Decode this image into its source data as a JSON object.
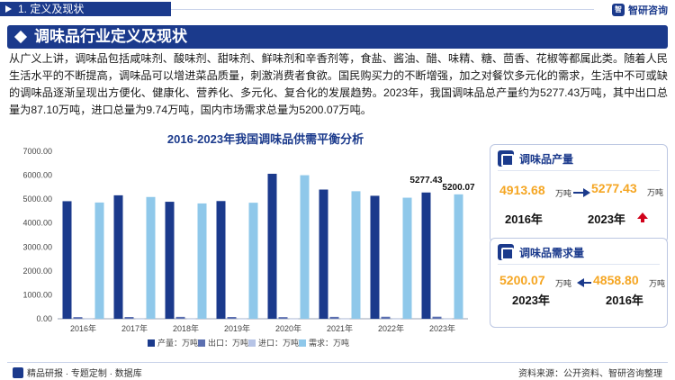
{
  "section": {
    "label": "1. 定义及现状"
  },
  "brand": {
    "logo_text": "智",
    "name": "智研咨询"
  },
  "heading": {
    "title": "调味品行业定义及现状"
  },
  "paragraph": "从广义上讲，调味品包括咸味剂、酸味剂、甜味剂、鲜味剂和辛香剂等，食盐、酱油、醋、味精、糖、茴香、花椒等都属此类。随着人民生活水平的不断提高，调味品可以增进菜品质量，刺激消费者食欲。国民购买力的不断增强，加之对餐饮多元化的需求，生活中不可或缺的调味品逐渐呈现出方便化、健康化、营养化、多元化、复合化的发展趋势。2023年，我国调味品总产量约为5277.43万吨，其中出口总量为87.10万吨，进口总量为9.74万吨，国内市场需求总量为5200.07万吨。",
  "chart_data": {
    "type": "bar",
    "title": "2016-2023年我国调味品供需平衡分析",
    "categories": [
      "2016年",
      "2017年",
      "2018年",
      "2019年",
      "2020年",
      "2021年",
      "2022年",
      "2023年"
    ],
    "series": [
      {
        "name": "产量：万吨",
        "color": "#1b3a8c",
        "values": [
          4913.68,
          5160,
          4890,
          4920,
          6060,
          5400,
          5140,
          5277.43
        ]
      },
      {
        "name": "出口：万吨",
        "color": "#5b6fb0",
        "values": [
          70,
          75,
          80,
          75,
          70,
          80,
          85,
          87.1
        ]
      },
      {
        "name": "进口：万吨",
        "color": "#b6c4e6",
        "values": [
          8,
          8,
          9,
          8,
          9,
          9,
          9,
          9.74
        ]
      },
      {
        "name": "需求：万吨",
        "color": "#8fc8ea",
        "values": [
          4858.8,
          5090,
          4820,
          4850,
          6000,
          5330,
          5060,
          5200.07
        ]
      }
    ],
    "data_labels": [
      {
        "series": 0,
        "index": 7,
        "text": "5277.43"
      },
      {
        "series": 3,
        "index": 7,
        "text": "5200.07"
      }
    ],
    "ylim": [
      0,
      7000
    ],
    "yticks": [
      "0.00",
      "1000.00",
      "2000.00",
      "3000.00",
      "4000.00",
      "5000.00",
      "6000.00",
      "7000.00"
    ],
    "legend_position": "bottom"
  },
  "cards": [
    {
      "title": "调味品产量",
      "left_value": "4913.68",
      "left_unit": "万吨",
      "left_year": "2016年",
      "right_value": "5277.43",
      "right_unit": "万吨",
      "right_year": "2023年",
      "trend": "up-arrow-icon"
    },
    {
      "title": "调味品需求量",
      "left_value": "5200.07",
      "left_unit": "万吨",
      "left_year": "2023年",
      "right_value": "4858.80",
      "right_unit": "万吨",
      "right_year": "2016年",
      "trend": "left-arrow-icon"
    }
  ],
  "footer": {
    "left": "精品研报 · 专题定制 · 数据库",
    "right": "资料来源：公开资料、智研咨询整理"
  },
  "colors": {
    "primary": "#1b3a8c",
    "accent": "#f5a623",
    "up": "#d0021b"
  }
}
